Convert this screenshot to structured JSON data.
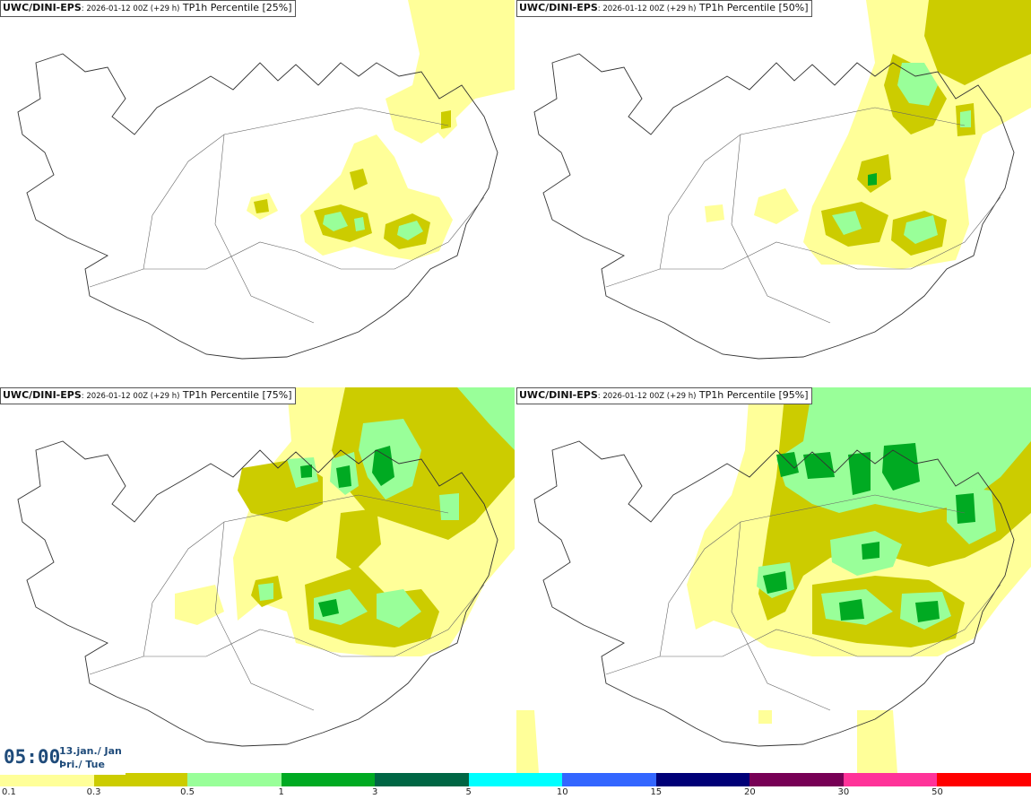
{
  "panels": [
    {
      "model": "UWC/DINI-EPS",
      "run": ": 2026-01-12 00Z (+29 h)",
      "field": "TP1h Percentile [25%]"
    },
    {
      "model": "UWC/DINI-EPS",
      "run": ": 2026-01-12 00Z (+29 h)",
      "field": "TP1h Percentile [50%]"
    },
    {
      "model": "UWC/DINI-EPS",
      "run": ": 2026-01-12 00Z (+29 h)",
      "field": "TP1h Percentile [75%]"
    },
    {
      "model": "UWC/DINI-EPS",
      "run": ": 2026-01-12 00Z (+29 h)",
      "field": "TP1h Percentile [95%]"
    }
  ],
  "valid_time": {
    "time": "05:00",
    "date": "13.jan./ Jan",
    "day": "Þri./ Tue"
  },
  "legend": {
    "colors": [
      "#ffff99",
      "#cccc00",
      "#99ff99",
      "#00aa22",
      "#006644",
      "#00ffff",
      "#3366ff",
      "#000077",
      "#770055",
      "#ff3399",
      "#ff0000"
    ],
    "ticks": [
      "0.1",
      "0.3",
      "0.5",
      "1",
      "3",
      "5",
      "10",
      "15",
      "20",
      "30",
      "50"
    ]
  }
}
